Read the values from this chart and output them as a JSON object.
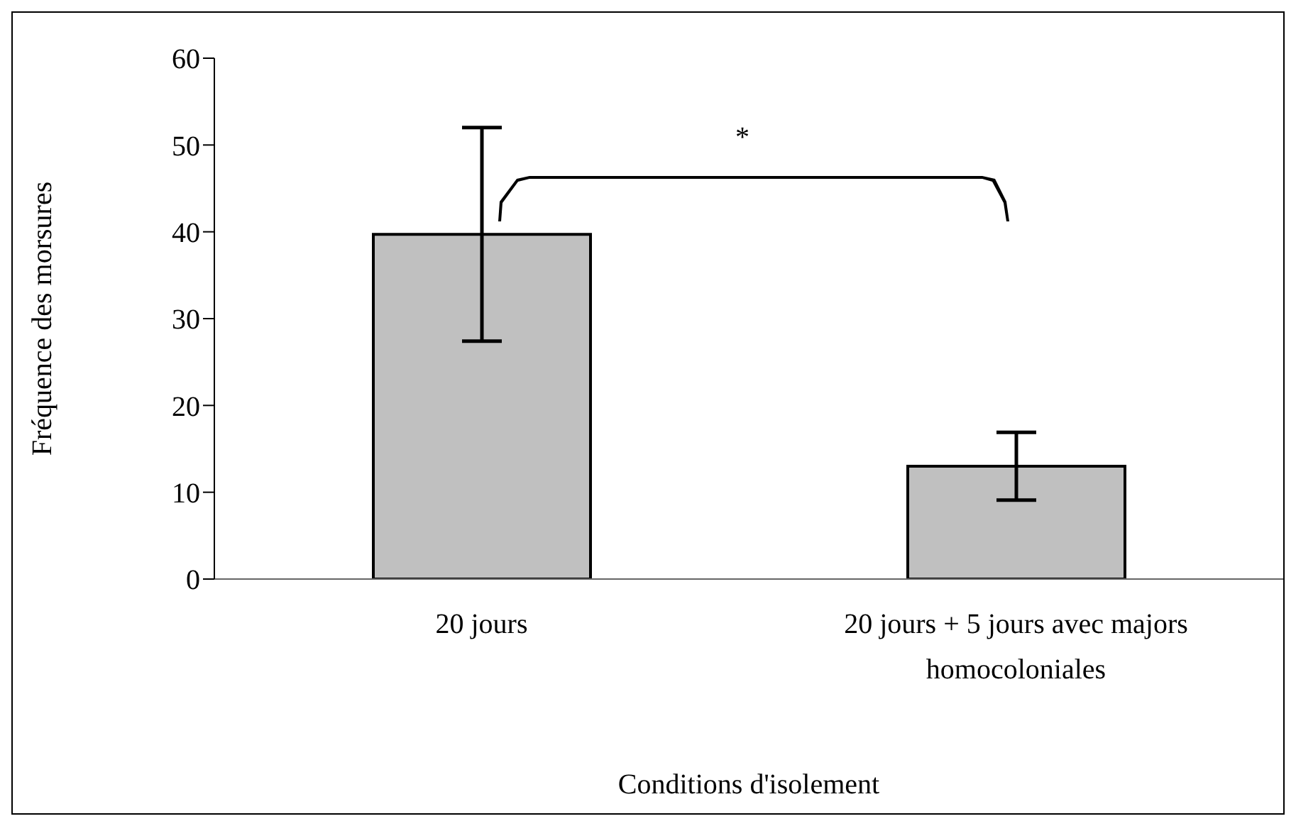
{
  "chart_data": {
    "type": "bar",
    "xlabel": "Conditions d'isolement",
    "ylabel": "Fréquence des morsures",
    "categories": [
      "20 jours",
      "20 jours + 5 jours avec majors homocoloniales"
    ],
    "values": [
      39.7,
      13.0
    ],
    "errors": [
      12.3,
      3.9
    ],
    "color": "#c0c0c0",
    "ylim": [
      0,
      60
    ],
    "yticks": [
      0,
      10,
      20,
      30,
      40,
      50,
      60
    ],
    "grid": false,
    "legend": false,
    "annotations": [
      "*"
    ]
  }
}
